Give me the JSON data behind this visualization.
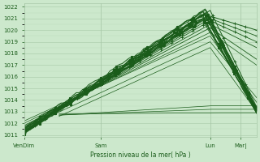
{
  "bg_color": "#cce8cc",
  "grid_color_major": "#a8c8a8",
  "grid_color_minor": "#b8d8b8",
  "line_color": "#1a5c1a",
  "text_color": "#1a5c1a",
  "xlabel": "Pression niveau de la mer( hPa )",
  "ylim": [
    1010.8,
    1022.3
  ],
  "yticks": [
    1011,
    1012,
    1013,
    1014,
    1015,
    1016,
    1017,
    1018,
    1019,
    1020,
    1021,
    1022
  ],
  "xtick_labels": [
    "VenDim",
    "Sam",
    "Lun",
    "Mar|"
  ],
  "xtick_positions": [
    0,
    0.33,
    0.8,
    0.93
  ],
  "series_lines": [
    {
      "x": [
        0,
        0.8,
        1.0
      ],
      "y": [
        1011.2,
        1021.7,
        1013.4
      ],
      "lw": 0.7,
      "marker": true
    },
    {
      "x": [
        0,
        0.78,
        1.0
      ],
      "y": [
        1011.3,
        1021.5,
        1013.2
      ],
      "lw": 0.7,
      "marker": true
    },
    {
      "x": [
        0,
        0.8,
        1.0
      ],
      "y": [
        1011.4,
        1021.2,
        1020.0
      ],
      "lw": 0.7,
      "marker": true
    },
    {
      "x": [
        0,
        0.8,
        1.0
      ],
      "y": [
        1011.5,
        1021.0,
        1019.5
      ],
      "lw": 0.6,
      "marker": true
    },
    {
      "x": [
        0,
        0.8,
        1.0
      ],
      "y": [
        1011.6,
        1020.8,
        1019.0
      ],
      "lw": 0.6,
      "marker": true
    },
    {
      "x": [
        0,
        0.8,
        1.0
      ],
      "y": [
        1011.7,
        1020.5,
        1018.5
      ],
      "lw": 0.6,
      "marker": false
    },
    {
      "x": [
        0,
        0.8,
        1.0
      ],
      "y": [
        1011.8,
        1020.2,
        1017.5
      ],
      "lw": 0.6,
      "marker": false
    },
    {
      "x": [
        0,
        0.8,
        1.0
      ],
      "y": [
        1012.0,
        1019.8,
        1017.0
      ],
      "lw": 0.5,
      "marker": false
    },
    {
      "x": [
        0,
        0.8,
        1.0
      ],
      "y": [
        1012.2,
        1019.5,
        1013.8
      ],
      "lw": 0.5,
      "marker": false
    },
    {
      "x": [
        0.1,
        0.8,
        1.0
      ],
      "y": [
        1012.5,
        1019.0,
        1014.2
      ],
      "lw": 0.5,
      "marker": false
    },
    {
      "x": [
        0.15,
        0.8,
        1.0
      ],
      "y": [
        1012.6,
        1018.5,
        1013.0
      ],
      "lw": 0.5,
      "marker": false
    },
    {
      "x": [
        0.15,
        0.8,
        1.0
      ],
      "y": [
        1012.7,
        1013.5,
        1013.5
      ],
      "lw": 0.5,
      "marker": false
    },
    {
      "x": [
        0.15,
        0.8,
        1.0
      ],
      "y": [
        1012.7,
        1013.2,
        1013.2
      ],
      "lw": 0.5,
      "marker": false
    },
    {
      "x": [
        0.15,
        0.8,
        1.0
      ],
      "y": [
        1012.8,
        1012.9,
        1012.9
      ],
      "lw": 0.5,
      "marker": false
    }
  ],
  "markersize": 2.5,
  "markevery": 0.05
}
